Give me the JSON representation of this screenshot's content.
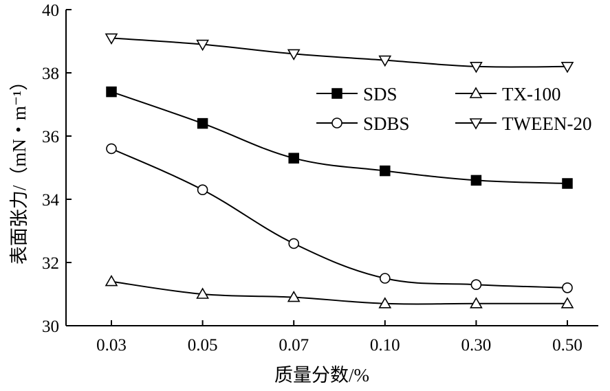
{
  "chart_data": {
    "type": "line",
    "xlabel": "质量分数/%",
    "ylabel": "表面张力/（mN・m⁻¹）",
    "categories": [
      "0.03",
      "0.05",
      "0.07",
      "0.10",
      "0.30",
      "0.50"
    ],
    "ylim": [
      30,
      40
    ],
    "yticks": [
      "30",
      "32",
      "34",
      "36",
      "38",
      "40"
    ],
    "grid": false,
    "legend_placement": "upper-right, two columns",
    "series": [
      {
        "name": "SDS",
        "marker": "filled-square",
        "values": [
          37.4,
          36.4,
          35.3,
          34.9,
          34.6,
          34.5
        ]
      },
      {
        "name": "SDBS",
        "marker": "open-circle",
        "values": [
          35.6,
          34.3,
          32.6,
          31.5,
          31.3,
          31.2
        ]
      },
      {
        "name": "TX-100",
        "marker": "open-triangle-up",
        "values": [
          31.4,
          31.0,
          30.9,
          30.7,
          30.7,
          30.7
        ]
      },
      {
        "name": "TWEEN-20",
        "marker": "open-triangle-down",
        "values": [
          39.1,
          38.9,
          38.6,
          38.4,
          38.2,
          38.2
        ]
      }
    ],
    "colors": {
      "line": "#000000",
      "marker_fill_open": "#ffffff",
      "marker_fill_solid": "#000000"
    }
  }
}
